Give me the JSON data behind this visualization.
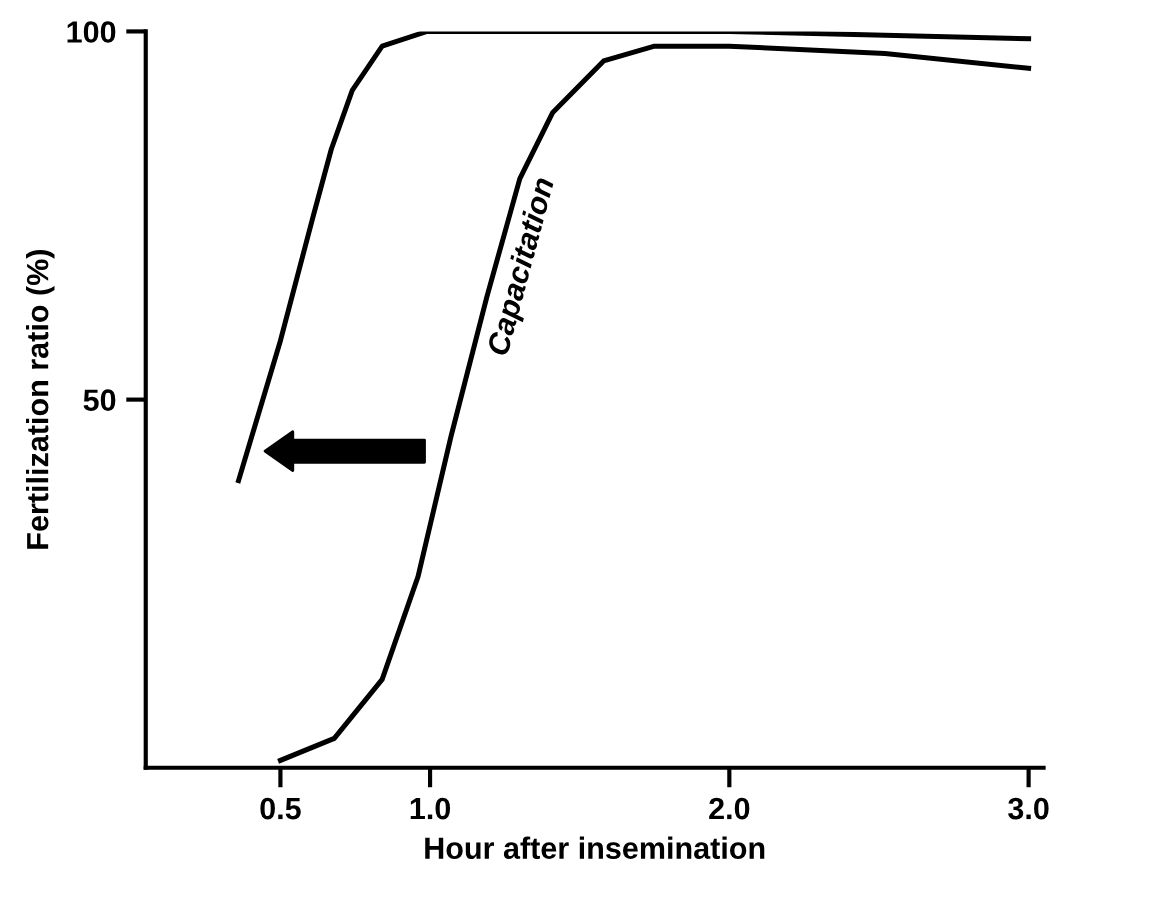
{
  "chart_data": {
    "type": "line",
    "xlabel": "Hour after insemination",
    "ylabel": "Fertilization ratio (%)",
    "xlim": [
      0.05,
      3.05
    ],
    "xticks": [
      {
        "value": 0.5,
        "label": "0.5"
      },
      {
        "value": 1.0,
        "label": "1.0"
      },
      {
        "value": 2.0,
        "label": "2.0"
      },
      {
        "value": 3.0,
        "label": "3.0"
      }
    ],
    "ylim": [
      0,
      100
    ],
    "yticks": [
      50,
      100
    ],
    "grid": false,
    "marker": "none",
    "line_style": "solid",
    "annotations": [
      "Capacitation"
    ],
    "series": [
      {
        "color": "#000000",
        "x": [
          0.36,
          0.5,
          0.61,
          0.67,
          0.74,
          0.84,
          0.99,
          1.41,
          2.0,
          3.0
        ],
        "values": [
          39,
          58,
          75,
          84,
          92,
          98,
          100,
          100,
          100,
          99
        ]
      },
      {
        "color": "#000000",
        "x": [
          0.5,
          0.68,
          0.84,
          0.96,
          1.07,
          1.19,
          1.3,
          1.41,
          1.58,
          1.75,
          2.0,
          2.52,
          3.0
        ],
        "values": [
          1,
          4,
          12,
          26,
          45,
          64,
          80,
          89,
          96,
          98,
          98,
          97,
          95
        ]
      }
    ]
  }
}
